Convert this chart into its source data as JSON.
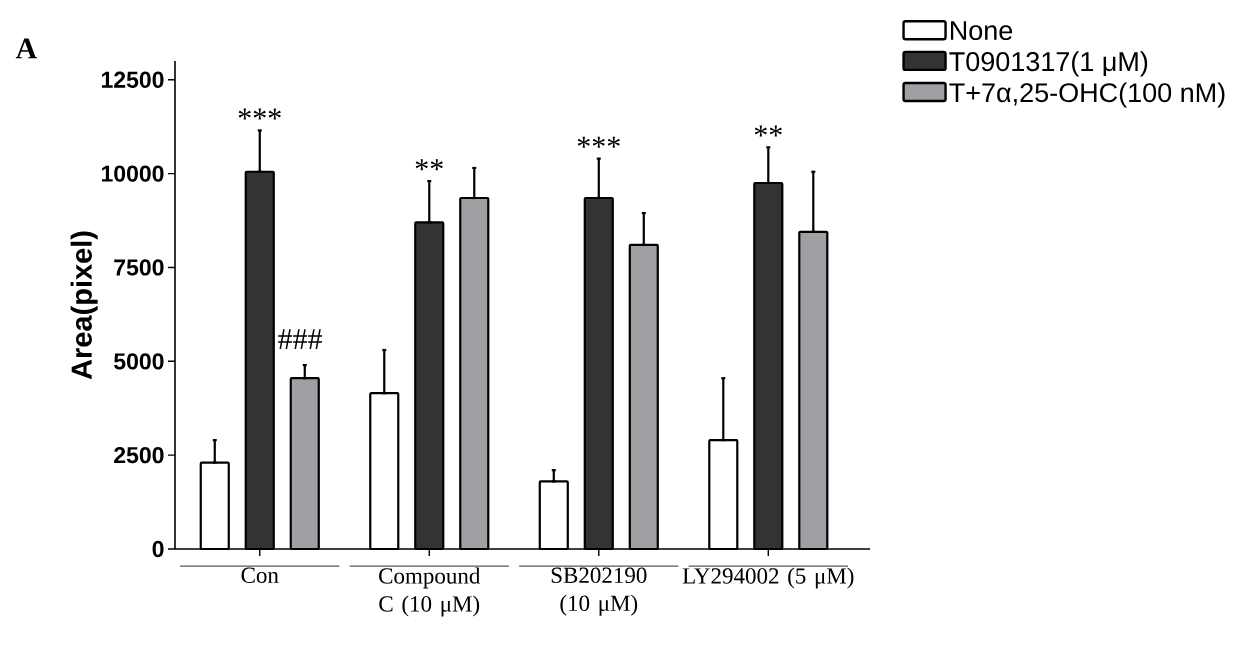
{
  "chart_data": {
    "type": "bar",
    "title": "A",
    "ylabel": "Area(pixel)",
    "categories": [
      "Con",
      "Compound C (10 μM)",
      "SB202190 (10 μM)",
      "LY294002 (5 μM)"
    ],
    "series": [
      {
        "name": "None",
        "color": "#ffffff",
        "values": [
          2300,
          4150,
          1800,
          2900
        ],
        "errors": [
          [
            2300,
            2900
          ],
          [
            4150,
            5300
          ],
          [
            1800,
            2100
          ],
          [
            2900,
            4550
          ]
        ]
      },
      {
        "name": "T0901317(1 μM)",
        "color": "#333333",
        "values": [
          10050,
          8700,
          9350,
          9750
        ],
        "errors": [
          [
            10050,
            11150
          ],
          [
            8700,
            9800
          ],
          [
            9350,
            10400
          ],
          [
            9750,
            10700
          ]
        ]
      },
      {
        "name": "T+7α,25-OHC(100 nM)",
        "color": "#a0a0a4",
        "values": [
          4550,
          9350,
          8100,
          8450
        ],
        "errors": [
          [
            4550,
            4900
          ],
          [
            9350,
            10150
          ],
          [
            8100,
            8950
          ],
          [
            8450,
            10050
          ]
        ]
      }
    ],
    "ylim": [
      0,
      13000
    ],
    "yticks": [
      0,
      2500,
      5000,
      7500,
      10000,
      12500
    ],
    "legend": "top right",
    "grid": false,
    "annotations": [
      {
        "text": "***",
        "x": "Con",
        "y": 11150
      },
      "###",
      {
        "text": "**",
        "x": "Compound C (10 μM)",
        "y": 9800
      },
      {
        "text": "***",
        "x": "SB202190 (10 μM)",
        "y": 10400
      },
      {
        "text": "**",
        "x": "LY294002 (5 μM)",
        "y": 10700
      }
    ]
  }
}
